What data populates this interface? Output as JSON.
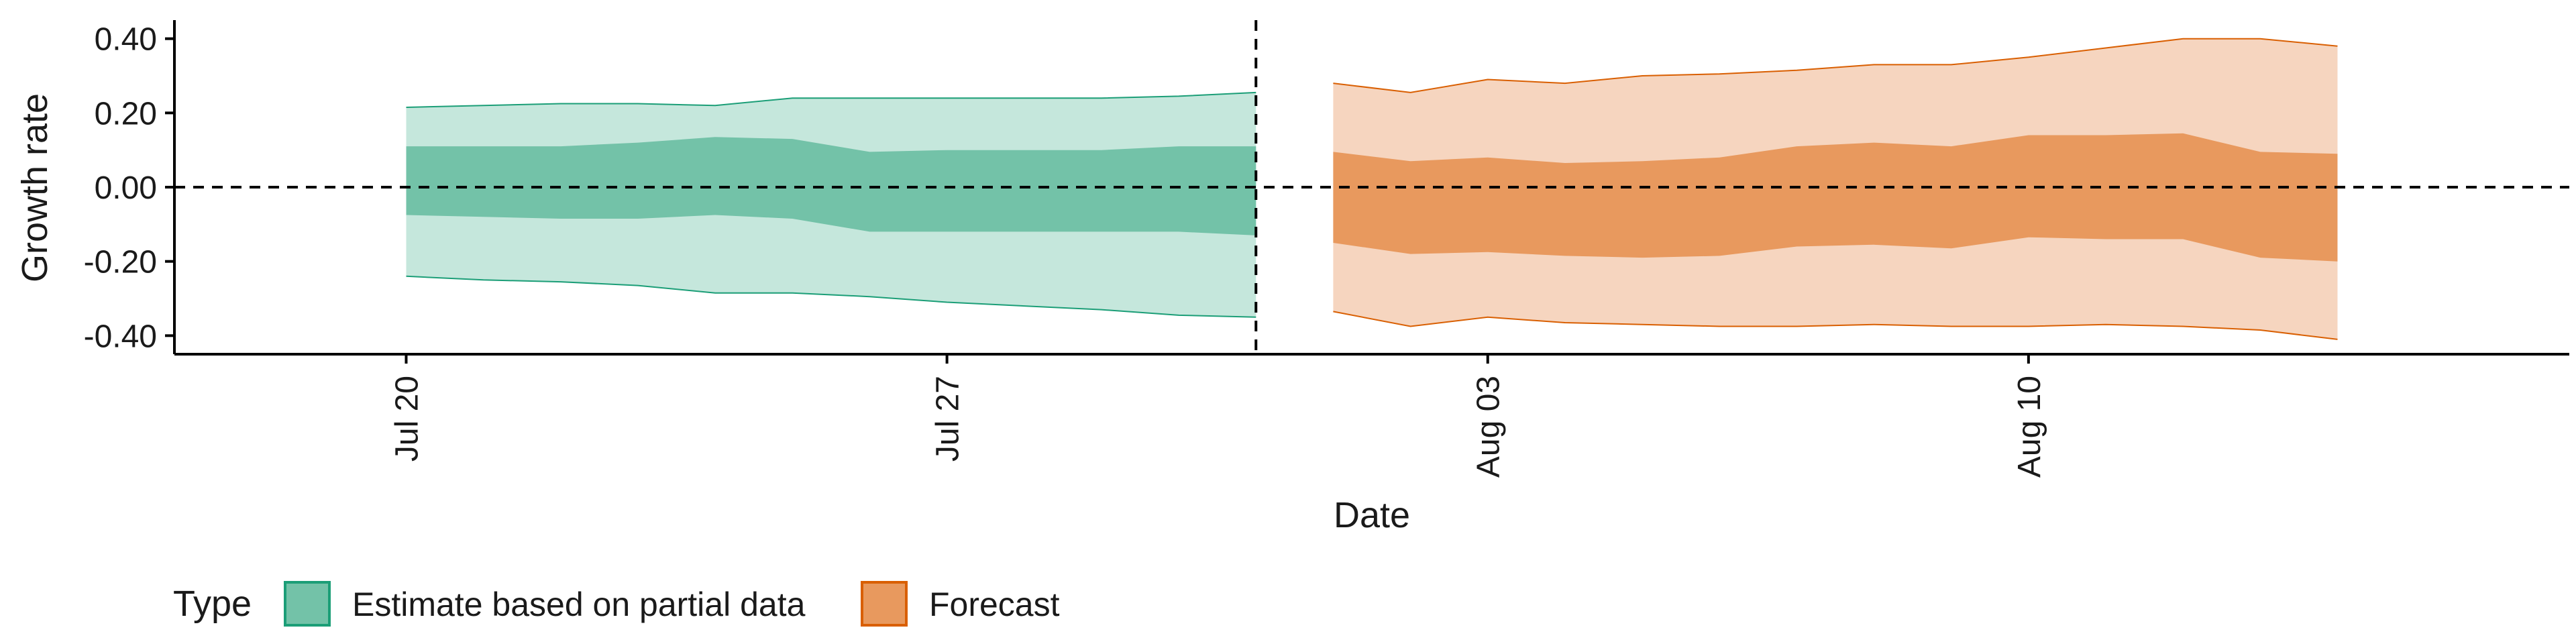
{
  "chart_data": {
    "type": "area",
    "title": "",
    "xlabel": "Date",
    "ylabel": "Growth rate",
    "x_type": "date",
    "x_range": [
      "2020-07-17",
      "2020-08-17"
    ],
    "ylim": [
      -0.45,
      0.45
    ],
    "x_ticks": [
      {
        "date": "2020-07-20",
        "label": "Jul 20"
      },
      {
        "date": "2020-07-27",
        "label": "Jul 27"
      },
      {
        "date": "2020-08-03",
        "label": "Aug 03"
      },
      {
        "date": "2020-08-10",
        "label": "Aug 10"
      }
    ],
    "y_ticks": [
      {
        "value": 0.4,
        "label": "0.40"
      },
      {
        "value": 0.2,
        "label": "0.20"
      },
      {
        "value": 0.0,
        "label": "0.00"
      },
      {
        "value": -0.2,
        "label": "-0.20"
      },
      {
        "value": -0.4,
        "label": "-0.40"
      }
    ],
    "reference_lines": {
      "horizontal": 0.0,
      "vertical_date": "2020-07-31"
    },
    "grid": false,
    "legend": {
      "title": "Type",
      "position": "bottom-left",
      "items": [
        {
          "label": "Estimate based on partial data",
          "fill": "#73c2a8",
          "stroke": "#1b9e77"
        },
        {
          "label": "Forecast",
          "fill": "#e8995e",
          "stroke": "#d95f02"
        }
      ]
    },
    "series": [
      {
        "name": "Estimate based on partial data",
        "outer_fill": "#c5e7dc",
        "inner_fill": "#73c2a8",
        "stroke": "#1b9e77",
        "x": [
          "2020-07-20",
          "2020-07-21",
          "2020-07-22",
          "2020-07-23",
          "2020-07-24",
          "2020-07-25",
          "2020-07-26",
          "2020-07-27",
          "2020-07-28",
          "2020-07-29",
          "2020-07-30",
          "2020-07-31"
        ],
        "upper90": [
          0.215,
          0.22,
          0.225,
          0.225,
          0.22,
          0.24,
          0.24,
          0.24,
          0.24,
          0.24,
          0.245,
          0.255
        ],
        "upper50": [
          0.11,
          0.11,
          0.11,
          0.12,
          0.135,
          0.13,
          0.095,
          0.1,
          0.1,
          0.1,
          0.11,
          0.11
        ],
        "lower50": [
          -0.075,
          -0.08,
          -0.085,
          -0.085,
          -0.075,
          -0.085,
          -0.12,
          -0.12,
          -0.12,
          -0.12,
          -0.12,
          -0.13
        ],
        "lower90": [
          -0.24,
          -0.25,
          -0.255,
          -0.265,
          -0.285,
          -0.285,
          -0.295,
          -0.31,
          -0.32,
          -0.33,
          -0.345,
          -0.35
        ]
      },
      {
        "name": "Forecast",
        "outer_fill": "#f6d5bf",
        "inner_fill": "#e8995e",
        "stroke": "#d95f02",
        "x": [
          "2020-08-01",
          "2020-08-02",
          "2020-08-03",
          "2020-08-04",
          "2020-08-05",
          "2020-08-06",
          "2020-08-07",
          "2020-08-08",
          "2020-08-09",
          "2020-08-10",
          "2020-08-11",
          "2020-08-12",
          "2020-08-13",
          "2020-08-14"
        ],
        "upper90": [
          0.28,
          0.255,
          0.29,
          0.28,
          0.3,
          0.305,
          0.315,
          0.33,
          0.33,
          0.35,
          0.375,
          0.4,
          0.4,
          0.38
        ],
        "upper50": [
          0.095,
          0.07,
          0.08,
          0.065,
          0.07,
          0.08,
          0.11,
          0.12,
          0.11,
          0.14,
          0.14,
          0.145,
          0.095,
          0.09
        ],
        "lower50": [
          -0.15,
          -0.18,
          -0.175,
          -0.185,
          -0.19,
          -0.185,
          -0.16,
          -0.155,
          -0.165,
          -0.135,
          -0.14,
          -0.14,
          -0.19,
          -0.2
        ],
        "lower90": [
          -0.335,
          -0.375,
          -0.35,
          -0.365,
          -0.37,
          -0.375,
          -0.375,
          -0.37,
          -0.375,
          -0.375,
          -0.37,
          -0.375,
          -0.385,
          -0.41
        ]
      }
    ]
  }
}
